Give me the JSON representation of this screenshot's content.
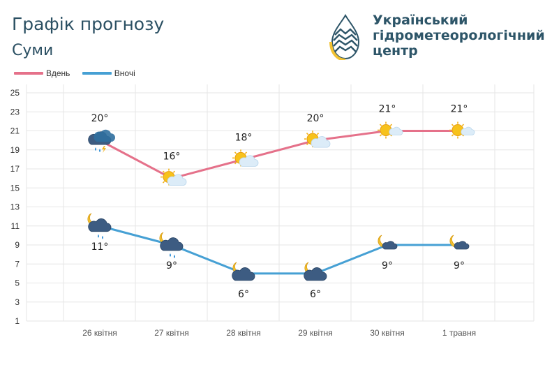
{
  "header": {
    "title": "Графік прогнозу",
    "city": "Суми",
    "org_lines": [
      "Український",
      "гідрометеорологічний",
      "центр"
    ]
  },
  "colors": {
    "day": "#e5718a",
    "night": "#46a0d4",
    "brand_blue": "#2d5568",
    "brand_yellow": "#f2c233"
  },
  "chart_data": {
    "type": "line",
    "categories": [
      "26 квітня",
      "27 квітня",
      "28 квітня",
      "29 квітня",
      "30 квітня",
      "1 травня"
    ],
    "series": [
      {
        "name": "Вдень",
        "values": [
          20,
          16,
          18,
          20,
          21,
          21
        ],
        "labels": [
          "20°",
          "16°",
          "18°",
          "20°",
          "21°",
          "21°"
        ],
        "icons": [
          "storm-cloud-rain-icon",
          "sun-cloud-icon",
          "sun-cloud-icon",
          "sun-cloud-icon",
          "sun-small-cloud-icon",
          "sun-small-cloud-icon"
        ]
      },
      {
        "name": "Вночі",
        "values": [
          11,
          9,
          6,
          6,
          9,
          9
        ],
        "labels": [
          "11°",
          "9°",
          "6°",
          "6°",
          "9°",
          "9°"
        ],
        "icons": [
          "moon-cloud-rain-icon",
          "moon-cloud-rain-icon",
          "moon-cloud-icon",
          "moon-cloud-icon",
          "moon-small-cloud-icon",
          "moon-small-cloud-icon"
        ]
      }
    ],
    "yticks": [
      "1",
      "3",
      "5",
      "7",
      "9",
      "11",
      "13",
      "15",
      "17",
      "19",
      "21",
      "23",
      "25"
    ],
    "ylim": [
      1,
      25
    ],
    "grid": true,
    "legend_position": "top-left"
  }
}
